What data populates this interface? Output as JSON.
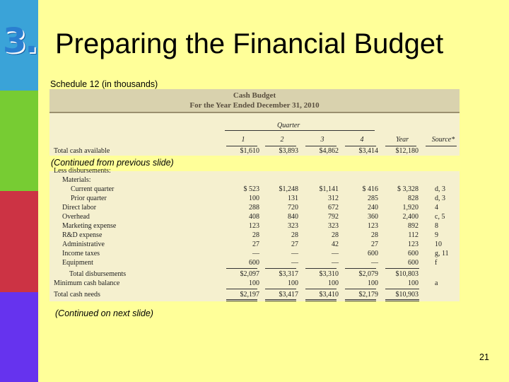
{
  "slide": {
    "number_label": "3.",
    "title": "Preparing the Financial Budget",
    "schedule_label": "Schedule 12 (in thousands)",
    "continued_from": "(Continued from previous slide)",
    "continued_next": "(Continued on next slide)",
    "page_number": "21"
  },
  "colors": {
    "background": "#ffff99",
    "sidebar": [
      "#3aa3d8",
      "#77cc33",
      "#cc3344",
      "#6633ee"
    ]
  },
  "table": {
    "title1": "Cash Budget",
    "title2": "For the Year Ended December 31, 2010",
    "group_header": "Quarter",
    "columns": [
      "1",
      "2",
      "3",
      "4",
      "Year",
      "Source*"
    ],
    "total_available": {
      "label": "Total cash available",
      "values": [
        "$1,610",
        "$3,893",
        "$4,862",
        "$3,414",
        "$12,180",
        ""
      ]
    },
    "section_label": "Less disbursements:",
    "materials_label": "Materials:",
    "rows": [
      {
        "label": "Current quarter",
        "values": [
          "$   523",
          "$1,248",
          "$1,141",
          "$   416",
          "$  3,328",
          "d, 3"
        ]
      },
      {
        "label": "Prior quarter",
        "values": [
          "100",
          "131",
          "312",
          "285",
          "828",
          "d, 3"
        ]
      },
      {
        "label": "Direct labor",
        "values": [
          "288",
          "720",
          "672",
          "240",
          "1,920",
          "4"
        ]
      },
      {
        "label": "Overhead",
        "values": [
          "408",
          "840",
          "792",
          "360",
          "2,400",
          "c, 5"
        ]
      },
      {
        "label": "Marketing expense",
        "values": [
          "123",
          "323",
          "323",
          "123",
          "892",
          "8"
        ]
      },
      {
        "label": "R&D expense",
        "values": [
          "28",
          "28",
          "28",
          "28",
          "112",
          "9"
        ]
      },
      {
        "label": "Administrative",
        "values": [
          "27",
          "27",
          "42",
          "27",
          "123",
          "10"
        ]
      },
      {
        "label": "Income taxes",
        "values": [
          "—",
          "—",
          "—",
          "600",
          "600",
          "g, 11"
        ]
      },
      {
        "label": "Equipment",
        "values": [
          "600",
          "—",
          "—",
          "—",
          "600",
          "f"
        ]
      }
    ],
    "total_disbursements": {
      "label": "Total disbursements",
      "values": [
        "$2,097",
        "$3,317",
        "$3,310",
        "$2,079",
        "$10,803",
        ""
      ]
    },
    "min_balance": {
      "label": "Minimum cash balance",
      "values": [
        "100",
        "100",
        "100",
        "100",
        "100",
        "a"
      ]
    },
    "total_needs": {
      "label": "Total cash needs",
      "values": [
        "$2,197",
        "$3,417",
        "$3,410",
        "$2,179",
        "$10,903",
        ""
      ]
    }
  }
}
